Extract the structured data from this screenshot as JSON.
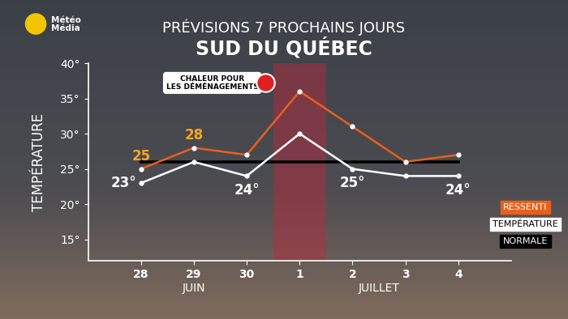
{
  "logo": "Météo\nMédia",
  "chart_data": {
    "type": "line",
    "title": "PRÉVISIONS 7 PROCHAINS JOURS",
    "subtitle": "SUD DU QUÉBEC",
    "y_label": "TEMPÉRATURE",
    "categories": [
      "28",
      "29",
      "30",
      "1",
      "2",
      "3",
      "4"
    ],
    "x_groups": [
      {
        "label": "JUIN",
        "categories": [
          "28",
          "29",
          "30"
        ]
      },
      {
        "label": "JUILLET",
        "categories": [
          "1",
          "2",
          "3",
          "4"
        ]
      }
    ],
    "ylim": [
      12,
      40
    ],
    "yticks": [
      {
        "value": 15,
        "label": "15°"
      },
      {
        "value": 20,
        "label": "20°"
      },
      {
        "value": 25,
        "label": "25°"
      },
      {
        "value": 30,
        "label": "30°"
      },
      {
        "value": 35,
        "label": "35°"
      },
      {
        "value": 40,
        "label": "40°"
      }
    ],
    "grid": false,
    "data_labels": true,
    "series": [
      {
        "name": "RESSENTI",
        "color": "#e8601c",
        "marker": "o",
        "line_style": "solid",
        "values": [
          25,
          28,
          27,
          36,
          31,
          26,
          27
        ],
        "value_labels": [
          "25",
          "28",
          null,
          null,
          null,
          null,
          null
        ]
      },
      {
        "name": "TEMPÉRATURE",
        "color": "#ffffff",
        "marker": "o",
        "line_style": "solid",
        "values": [
          23,
          26,
          24,
          30,
          25,
          24,
          24
        ],
        "value_labels": [
          "23°",
          null,
          "24°",
          null,
          "25°",
          null,
          "24°"
        ]
      },
      {
        "name": "NORMALE",
        "color": "#000000",
        "marker": "none",
        "line_style": "solid",
        "values": [
          26,
          26,
          26,
          26,
          26,
          26,
          26
        ]
      }
    ],
    "annotations": [
      {
        "text": "CHALEUR POUR\nLES DÉMÉNAGEMENTS",
        "category": "1"
      }
    ]
  }
}
